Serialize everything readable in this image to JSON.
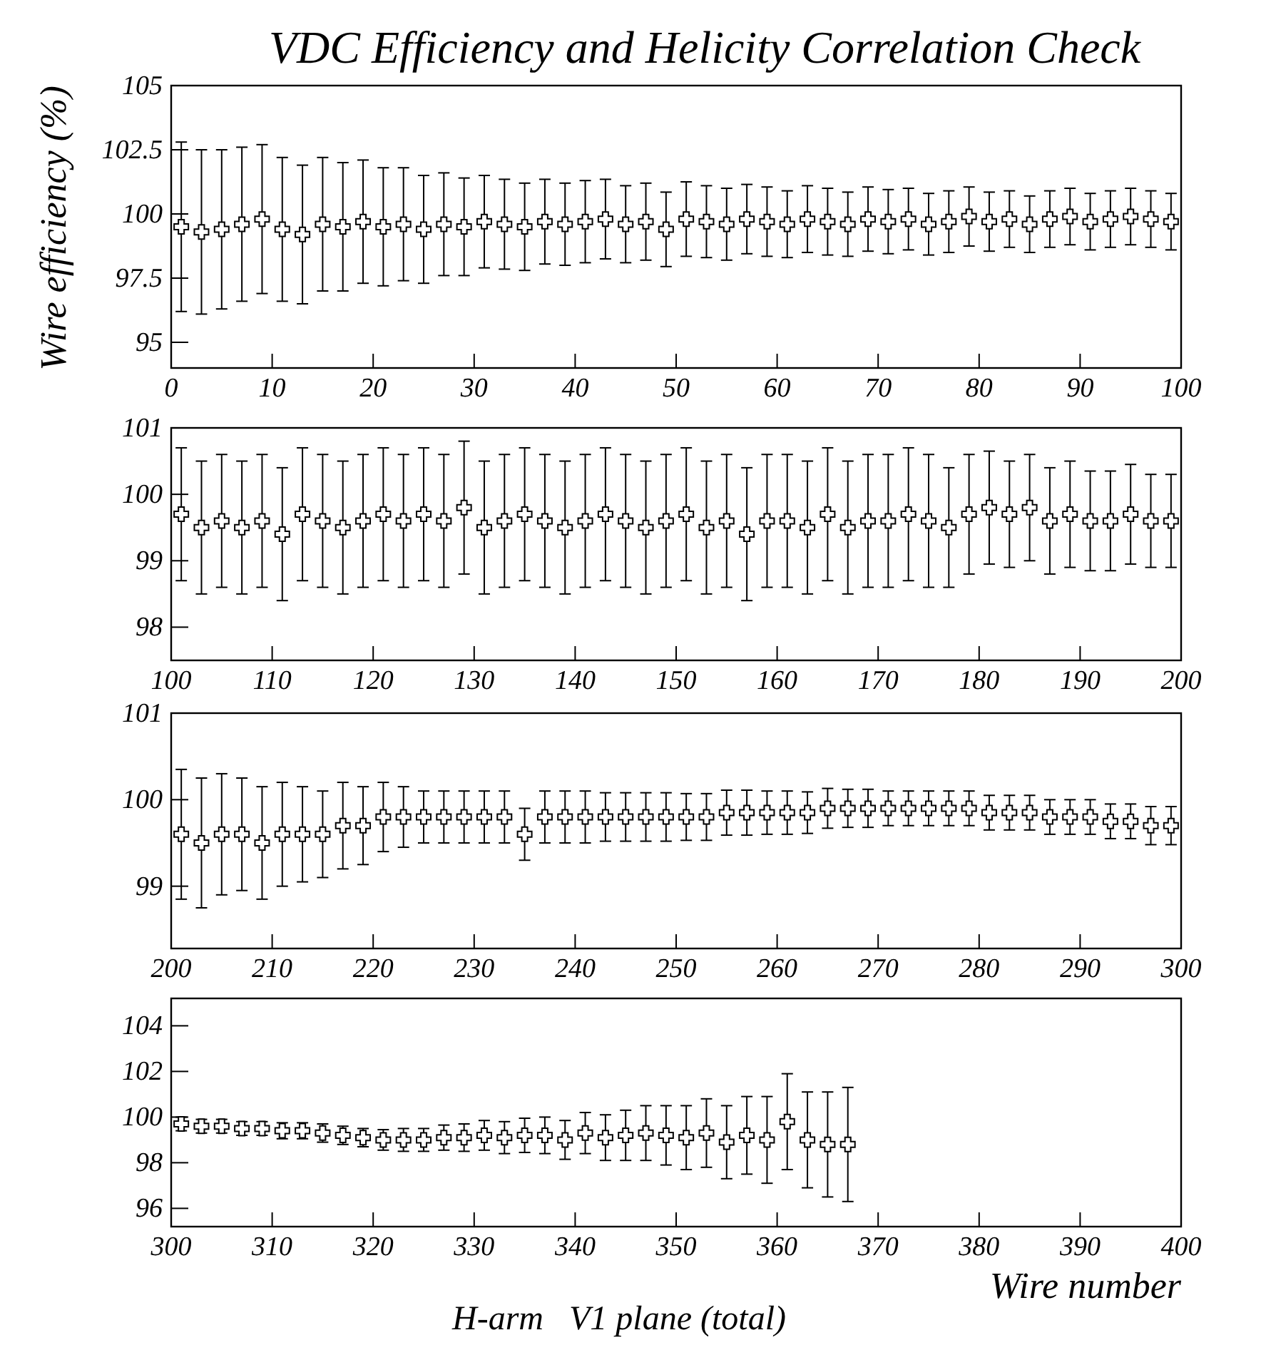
{
  "chart_data": [
    {
      "type": "scatter",
      "title": "VDC Efficiency and Helicity Correlation Check",
      "ylabel": "Wire efficiency (%)",
      "marker": "cross",
      "color": "#000000",
      "x": [
        1,
        3,
        5,
        7,
        9,
        11,
        13,
        15,
        17,
        19,
        21,
        23,
        25,
        27,
        29,
        31,
        33,
        35,
        37,
        39,
        41,
        43,
        45,
        47,
        49,
        51,
        53,
        55,
        57,
        59,
        61,
        63,
        65,
        67,
        69,
        71,
        73,
        75,
        77,
        79,
        81,
        83,
        85,
        87,
        89,
        91,
        93,
        95,
        97,
        99
      ],
      "values": [
        99.5,
        99.3,
        99.4,
        99.6,
        99.8,
        99.4,
        99.2,
        99.6,
        99.5,
        99.7,
        99.5,
        99.6,
        99.4,
        99.6,
        99.5,
        99.7,
        99.6,
        99.5,
        99.7,
        99.6,
        99.7,
        99.8,
        99.6,
        99.7,
        99.4,
        99.8,
        99.7,
        99.6,
        99.8,
        99.7,
        99.6,
        99.8,
        99.7,
        99.6,
        99.8,
        99.7,
        99.8,
        99.6,
        99.7,
        99.9,
        99.7,
        99.8,
        99.6,
        99.8,
        99.9,
        99.7,
        99.8,
        99.9,
        99.8,
        99.7
      ],
      "errors": [
        3.3,
        3.2,
        3.1,
        3.0,
        2.9,
        2.8,
        2.7,
        2.6,
        2.5,
        2.4,
        2.3,
        2.2,
        2.1,
        2.0,
        1.9,
        1.8,
        1.75,
        1.7,
        1.65,
        1.6,
        1.6,
        1.55,
        1.5,
        1.5,
        1.45,
        1.45,
        1.4,
        1.4,
        1.35,
        1.35,
        1.3,
        1.3,
        1.3,
        1.25,
        1.25,
        1.25,
        1.2,
        1.2,
        1.2,
        1.15,
        1.15,
        1.1,
        1.1,
        1.1,
        1.1,
        1.1,
        1.1,
        1.1,
        1.1,
        1.1
      ],
      "xlim": [
        0,
        100
      ],
      "xticks": [
        0,
        10,
        20,
        30,
        40,
        50,
        60,
        70,
        80,
        90,
        100
      ],
      "ylim": [
        94,
        105
      ],
      "yticks": [
        95,
        97.5,
        100,
        102.5,
        105
      ]
    },
    {
      "type": "scatter",
      "marker": "cross",
      "color": "#000000",
      "x": [
        101,
        103,
        105,
        107,
        109,
        111,
        113,
        115,
        117,
        119,
        121,
        123,
        125,
        127,
        129,
        131,
        133,
        135,
        137,
        139,
        141,
        143,
        145,
        147,
        149,
        151,
        153,
        155,
        157,
        159,
        161,
        163,
        165,
        167,
        169,
        171,
        173,
        175,
        177,
        179,
        181,
        183,
        185,
        187,
        189,
        191,
        193,
        195,
        197,
        199
      ],
      "values": [
        99.7,
        99.5,
        99.6,
        99.5,
        99.6,
        99.4,
        99.7,
        99.6,
        99.5,
        99.6,
        99.7,
        99.6,
        99.7,
        99.6,
        99.8,
        99.5,
        99.6,
        99.7,
        99.6,
        99.5,
        99.6,
        99.7,
        99.6,
        99.5,
        99.6,
        99.7,
        99.5,
        99.6,
        99.4,
        99.6,
        99.6,
        99.5,
        99.7,
        99.5,
        99.6,
        99.6,
        99.7,
        99.6,
        99.5,
        99.7,
        99.8,
        99.7,
        99.8,
        99.6,
        99.7,
        99.6,
        99.6,
        99.7,
        99.6,
        99.6
      ],
      "errors": [
        1.0,
        1.0,
        1.0,
        1.0,
        1.0,
        1.0,
        1.0,
        1.0,
        1.0,
        1.0,
        1.0,
        1.0,
        1.0,
        1.0,
        1.0,
        1.0,
        1.0,
        1.0,
        1.0,
        1.0,
        1.0,
        1.0,
        1.0,
        1.0,
        1.0,
        1.0,
        1.0,
        1.0,
        1.0,
        1.0,
        1.0,
        1.0,
        1.0,
        1.0,
        1.0,
        1.0,
        1.0,
        1.0,
        0.9,
        0.9,
        0.85,
        0.8,
        0.8,
        0.8,
        0.8,
        0.75,
        0.75,
        0.75,
        0.7,
        0.7
      ],
      "xlim": [
        100,
        200
      ],
      "xticks": [
        100,
        110,
        120,
        130,
        140,
        150,
        160,
        170,
        180,
        190,
        200
      ],
      "ylim": [
        97.5,
        101
      ],
      "yticks": [
        98,
        99,
        100,
        101
      ]
    },
    {
      "type": "scatter",
      "marker": "cross",
      "color": "#000000",
      "x": [
        201,
        203,
        205,
        207,
        209,
        211,
        213,
        215,
        217,
        219,
        221,
        223,
        225,
        227,
        229,
        231,
        233,
        235,
        237,
        239,
        241,
        243,
        245,
        247,
        249,
        251,
        253,
        255,
        257,
        259,
        261,
        263,
        265,
        267,
        269,
        271,
        273,
        275,
        277,
        279,
        281,
        283,
        285,
        287,
        289,
        291,
        293,
        295,
        297,
        299
      ],
      "values": [
        99.6,
        99.5,
        99.6,
        99.6,
        99.5,
        99.6,
        99.6,
        99.6,
        99.7,
        99.7,
        99.8,
        99.8,
        99.8,
        99.8,
        99.8,
        99.8,
        99.8,
        99.6,
        99.8,
        99.8,
        99.8,
        99.8,
        99.8,
        99.8,
        99.8,
        99.8,
        99.8,
        99.85,
        99.85,
        99.85,
        99.85,
        99.85,
        99.9,
        99.9,
        99.9,
        99.9,
        99.9,
        99.9,
        99.9,
        99.9,
        99.85,
        99.85,
        99.85,
        99.8,
        99.8,
        99.8,
        99.75,
        99.75,
        99.7,
        99.7
      ],
      "errors": [
        0.75,
        0.75,
        0.7,
        0.65,
        0.65,
        0.6,
        0.55,
        0.5,
        0.5,
        0.45,
        0.4,
        0.35,
        0.3,
        0.3,
        0.3,
        0.3,
        0.3,
        0.3,
        0.3,
        0.3,
        0.3,
        0.28,
        0.28,
        0.28,
        0.28,
        0.27,
        0.27,
        0.26,
        0.26,
        0.25,
        0.25,
        0.24,
        0.23,
        0.22,
        0.22,
        0.2,
        0.2,
        0.2,
        0.2,
        0.2,
        0.2,
        0.2,
        0.2,
        0.2,
        0.2,
        0.2,
        0.2,
        0.2,
        0.22,
        0.22
      ],
      "xlim": [
        200,
        300
      ],
      "xticks": [
        200,
        210,
        220,
        230,
        240,
        250,
        260,
        270,
        280,
        290,
        300
      ],
      "ylim": [
        98.28,
        101
      ],
      "yticks": [
        99,
        100,
        101
      ]
    },
    {
      "type": "scatter",
      "xlabel": "Wire number",
      "annotations": [
        "H-arm   V1 plane (total)"
      ],
      "marker": "cross",
      "color": "#000000",
      "x": [
        301,
        303,
        305,
        307,
        309,
        311,
        313,
        315,
        317,
        319,
        321,
        323,
        325,
        327,
        329,
        331,
        333,
        335,
        337,
        339,
        341,
        343,
        345,
        347,
        349,
        351,
        353,
        355,
        357,
        359,
        361,
        363,
        365,
        367
      ],
      "values": [
        99.7,
        99.6,
        99.6,
        99.5,
        99.5,
        99.4,
        99.4,
        99.3,
        99.2,
        99.1,
        99.0,
        99.0,
        99.0,
        99.1,
        99.1,
        99.2,
        99.1,
        99.2,
        99.2,
        99.0,
        99.3,
        99.1,
        99.2,
        99.3,
        99.2,
        99.1,
        99.3,
        98.9,
        99.2,
        99.0,
        99.8,
        99.0,
        98.8,
        98.8
      ],
      "errors": [
        0.3,
        0.3,
        0.3,
        0.3,
        0.3,
        0.35,
        0.35,
        0.4,
        0.4,
        0.4,
        0.45,
        0.5,
        0.5,
        0.55,
        0.6,
        0.65,
        0.7,
        0.75,
        0.8,
        0.85,
        0.9,
        1.0,
        1.1,
        1.2,
        1.3,
        1.4,
        1.5,
        1.6,
        1.7,
        1.9,
        2.1,
        2.1,
        2.3,
        2.5
      ],
      "xlim": [
        300,
        400
      ],
      "xticks": [
        300,
        310,
        320,
        330,
        340,
        350,
        360,
        370,
        380,
        390,
        400
      ],
      "ylim": [
        95.2,
        105.2
      ],
      "yticks": [
        96,
        98,
        100,
        102,
        104
      ]
    }
  ]
}
